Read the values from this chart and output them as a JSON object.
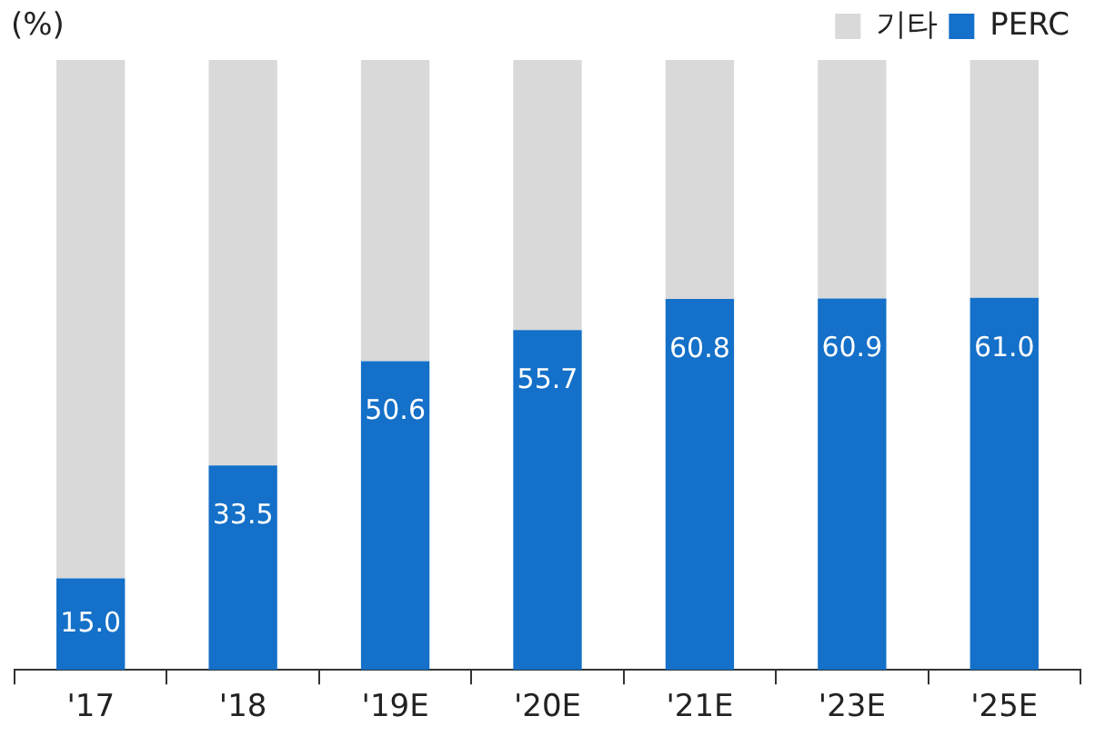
{
  "chart_data": {
    "type": "bar",
    "ylabel": "(%)",
    "categories": [
      "'17",
      "'18",
      "'19E",
      "'20E",
      "'21E",
      "'23E",
      "'25E"
    ],
    "stacked": true,
    "ylim": [
      0,
      100
    ],
    "legend": "top right",
    "grid": false,
    "series": [
      {
        "name": "PERC",
        "color": "#1470c8",
        "values": [
          15.0,
          33.5,
          50.6,
          55.7,
          60.8,
          60.9,
          61.0
        ],
        "value_labels": [
          "15.0",
          "33.5",
          "50.6",
          "55.7",
          "60.8",
          "60.9",
          "61.0"
        ]
      },
      {
        "name": "기타",
        "color": "#d9d9d9",
        "values": [
          85.0,
          66.5,
          49.4,
          44.3,
          39.2,
          39.1,
          39.0
        ]
      }
    ]
  }
}
